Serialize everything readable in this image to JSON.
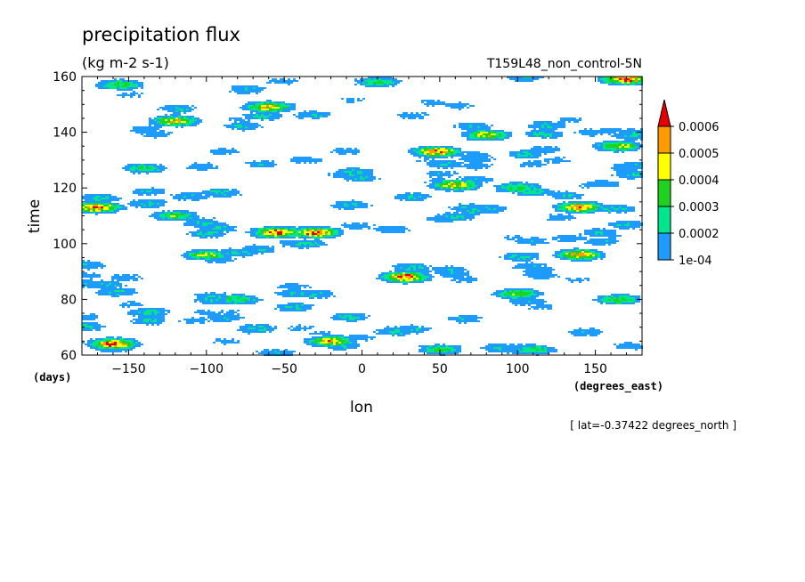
{
  "chart_data": {
    "type": "heatmap",
    "title": "precipitation flux",
    "units": "(kg m-2 s-1)",
    "run_label": "T159L48_non_control-5N",
    "xlabel": "lon",
    "x_units": "(degrees_east)",
    "ylabel": "time",
    "y_units": "(days)",
    "slice_note": "[ lat=-0.37422 degrees_north ]",
    "xlim": [
      -180,
      180
    ],
    "ylim": [
      60,
      160
    ],
    "x_ticks": [
      -150,
      -100,
      -50,
      0,
      50,
      100,
      150
    ],
    "y_ticks": [
      60,
      80,
      100,
      120,
      140,
      160
    ],
    "colorbar": {
      "levels": [
        "1e-04",
        "0.0002",
        "0.0003",
        "0.0004",
        "0.0005",
        "0.0006"
      ],
      "colors": [
        "#1e9bff",
        "#00e68c",
        "#1ed21e",
        "#ffff00",
        "#ff9b00",
        "#e60000"
      ],
      "extend": "max"
    },
    "features": [
      {
        "lon": -160,
        "day": 64,
        "value": 0.00062
      },
      {
        "lon": -170,
        "day": 113,
        "value": 0.00058
      },
      {
        "lon": -155,
        "day": 157,
        "value": 0.00035
      },
      {
        "lon": -120,
        "day": 144,
        "value": 0.00048
      },
      {
        "lon": -60,
        "day": 149,
        "value": 0.0005
      },
      {
        "lon": -55,
        "day": 104,
        "value": 0.0006
      },
      {
        "lon": -30,
        "day": 104,
        "value": 0.0006
      },
      {
        "lon": -20,
        "day": 65,
        "value": 0.00052
      },
      {
        "lon": 28,
        "day": 88,
        "value": 0.00061
      },
      {
        "lon": 48,
        "day": 133,
        "value": 0.00058
      },
      {
        "lon": 60,
        "day": 121,
        "value": 0.0005
      },
      {
        "lon": 80,
        "day": 139,
        "value": 0.00045
      },
      {
        "lon": 140,
        "day": 113,
        "value": 0.00055
      },
      {
        "lon": 170,
        "day": 159,
        "value": 0.00062
      },
      {
        "lon": 165,
        "day": 135,
        "value": 0.00042
      },
      {
        "lon": 165,
        "day": 80,
        "value": 0.00035
      },
      {
        "lon": 100,
        "day": 82,
        "value": 0.0004
      },
      {
        "lon": 140,
        "day": 96,
        "value": 0.00051
      },
      {
        "lon": -100,
        "day": 96,
        "value": 0.0004
      },
      {
        "lon": -120,
        "day": 110,
        "value": 0.00035
      },
      {
        "lon": 10,
        "day": 158,
        "value": 0.00032
      },
      {
        "lon": -80,
        "day": 80,
        "value": 0.00032
      },
      {
        "lon": 50,
        "day": 62,
        "value": 0.00032
      },
      {
        "lon": 110,
        "day": 62,
        "value": 0.0003
      },
      {
        "lon": -140,
        "day": 127,
        "value": 0.0003
      },
      {
        "lon": 100,
        "day": 120,
        "value": 0.00035
      }
    ]
  }
}
